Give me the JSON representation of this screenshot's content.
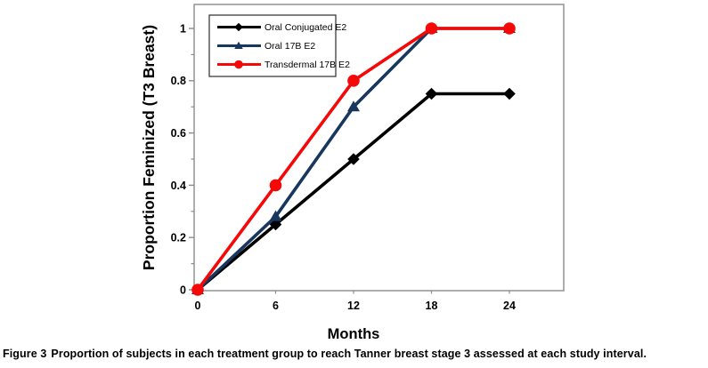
{
  "figure": {
    "caption_label": "Figure 3",
    "caption_text": "Proportion of subjects in each treatment group to reach Tanner breast stage 3 assessed at each study interval."
  },
  "chart_data": {
    "type": "line",
    "title": "",
    "xlabel": "Months",
    "ylabel": "Proportion Feminized (T3 Breast)",
    "x": [
      0,
      6,
      12,
      18,
      24
    ],
    "x_ticks": [
      0,
      6,
      12,
      18,
      24
    ],
    "y_ticks": [
      0,
      0.2,
      0.4,
      0.6,
      0.8,
      1
    ],
    "y_minor_tick_step": 0.1,
    "xlim": [
      0,
      28
    ],
    "ylim": [
      0,
      1.09
    ],
    "grid": false,
    "legend_position": "upper-left-inside",
    "series": [
      {
        "name": "Oral Conjugated E2",
        "color": "#000000",
        "marker": "diamond",
        "values": [
          0,
          0.25,
          0.5,
          0.75,
          0.75
        ]
      },
      {
        "name": "Oral 17B E2",
        "color": "#17375e",
        "marker": "triangle",
        "values": [
          0,
          0.28,
          0.7,
          1,
          1
        ]
      },
      {
        "name": "Transdermal 17B E2",
        "color": "#f40808",
        "marker": "circle",
        "values": [
          0,
          0.4,
          0.8,
          1,
          1
        ]
      }
    ]
  },
  "style": {
    "axis_color": "#8c8c8c",
    "tick_color": "#8c8c8c",
    "legend_border_color": "#3c3c3c",
    "text_color": "#000000",
    "background": "#ffffff"
  }
}
